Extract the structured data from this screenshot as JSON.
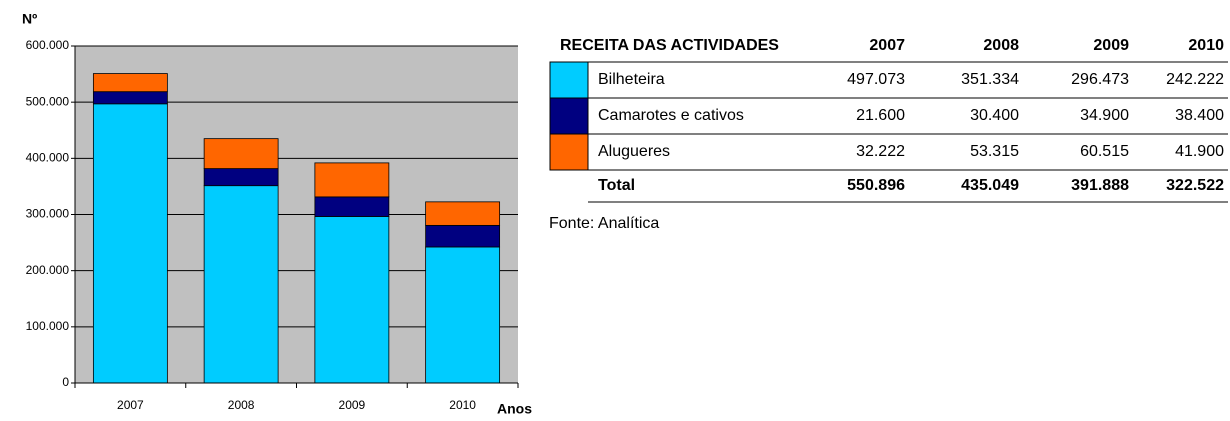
{
  "chart_data": {
    "type": "stacked_bar",
    "y_label": "Nº",
    "x_label": "Anos",
    "categories": [
      "2007",
      "2008",
      "2009",
      "2010"
    ],
    "series": [
      {
        "name": "Bilheteira",
        "color": "#00ccff",
        "values": [
          497073,
          351334,
          296473,
          242222
        ],
        "value_labels": [
          "497.073",
          "351.334",
          "296.473",
          "242.222"
        ]
      },
      {
        "name": "Camarotes e cativos",
        "color": "#000080",
        "values": [
          21600,
          30400,
          34900,
          38400
        ],
        "value_labels": [
          "21.600",
          "30.400",
          "34.900",
          "38.400"
        ]
      },
      {
        "name": "Alugueres",
        "color": "#ff6600",
        "values": [
          32222,
          53315,
          60515,
          41900
        ],
        "value_labels": [
          "32.222",
          "53.315",
          "60.515",
          "41.900"
        ]
      }
    ],
    "ylim": [
      0,
      600000
    ],
    "yticks": [
      {
        "value": 0,
        "label": "0"
      },
      {
        "value": 100000,
        "label": "100.000"
      },
      {
        "value": 200000,
        "label": "200.000"
      },
      {
        "value": 300000,
        "label": "300.000"
      },
      {
        "value": 400000,
        "label": "400.000"
      },
      {
        "value": 500000,
        "label": "500.000"
      },
      {
        "value": 600000,
        "label": "600.000"
      }
    ],
    "grid": true,
    "background": "#c0c0c0"
  },
  "table": {
    "title": "RECEITA DAS ACTIVIDADES",
    "total_label": "Total",
    "totals": [
      "550.896",
      "435.049",
      "391.888",
      "322.522"
    ],
    "source": "Fonte: Analítica"
  }
}
